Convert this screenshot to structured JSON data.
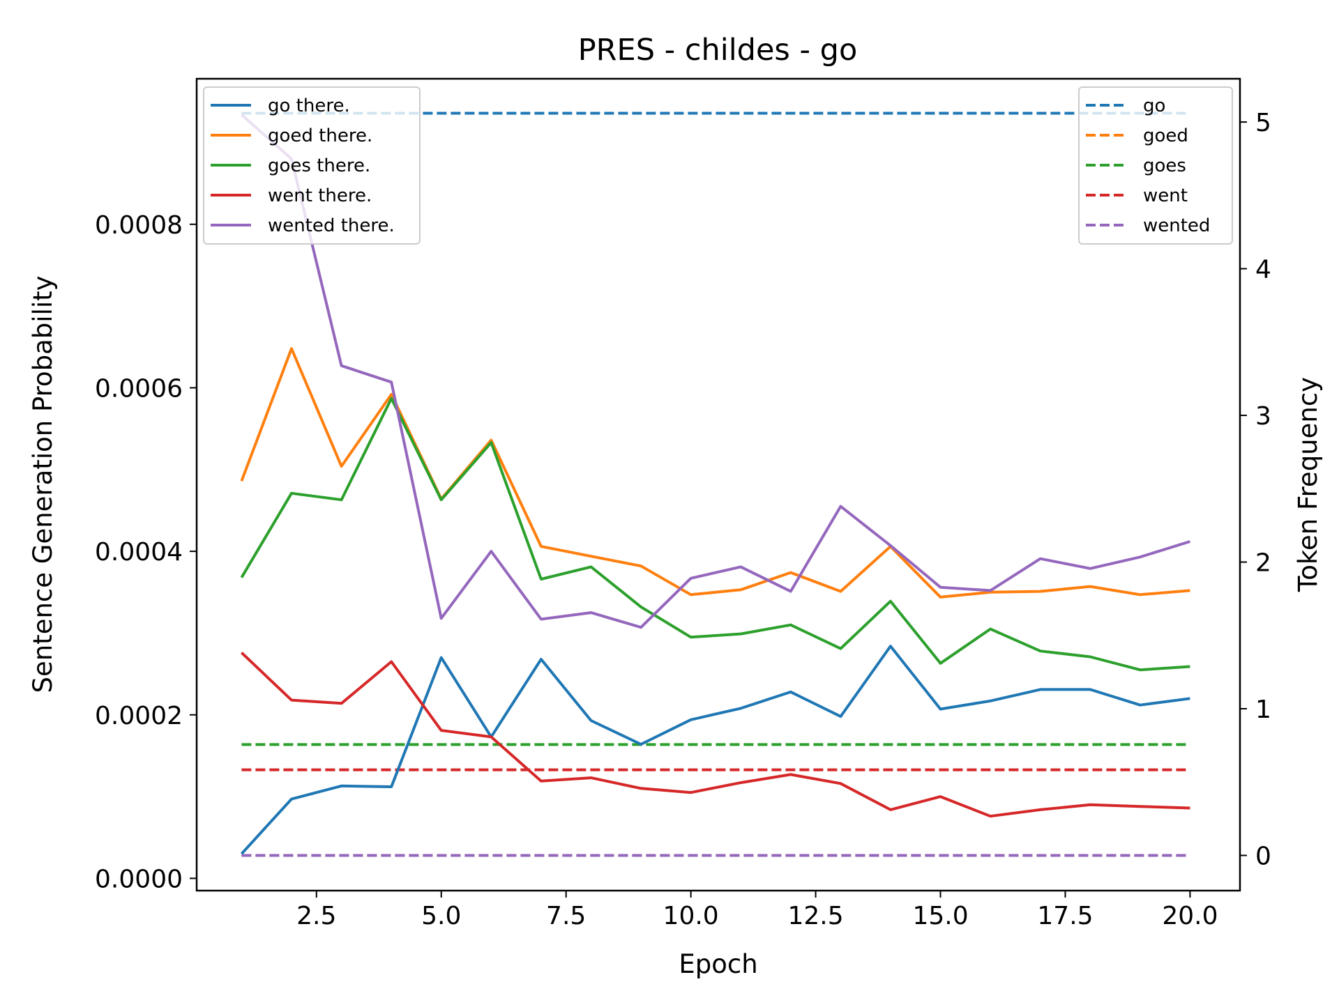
{
  "chart_data": {
    "type": "line",
    "title": "PRES - childes - go",
    "xlabel": "Epoch",
    "ylabel_left": "Sentence Generation Probability",
    "ylabel_right": "Token Frequency",
    "x": [
      1,
      2,
      3,
      4,
      5,
      6,
      7,
      8,
      9,
      10,
      11,
      12,
      13,
      14,
      15,
      16,
      17,
      18,
      19,
      20
    ],
    "xlim": [
      0.1,
      21.0
    ],
    "ylim_left": [
      -1.5e-05,
      0.000978
    ],
    "ylim_right": [
      -0.24,
      5.295
    ],
    "x_ticks": [
      2.5,
      5.0,
      7.5,
      10.0,
      12.5,
      15.0,
      17.5,
      20.0
    ],
    "x_tick_labels": [
      "2.5",
      "5.0",
      "7.5",
      "10.0",
      "12.5",
      "15.0",
      "17.5",
      "20.0"
    ],
    "y_left_ticks": [
      0.0,
      0.0002,
      0.0004,
      0.0006,
      0.0008
    ],
    "y_left_tick_labels": [
      "0.0000",
      "0.0002",
      "0.0004",
      "0.0006",
      "0.0008"
    ],
    "y_right_ticks": [
      0,
      1,
      2,
      3,
      4,
      5
    ],
    "y_right_tick_labels": [
      "0",
      "1",
      "2",
      "3",
      "4",
      "5"
    ],
    "grid": false,
    "series": [
      {
        "name": "go there.",
        "axis": "left",
        "color": "#1f77b4",
        "style": "solid",
        "values": [
          3e-05,
          9.7e-05,
          0.000113,
          0.000112,
          0.00027,
          0.000173,
          0.000268,
          0.000193,
          0.000164,
          0.000194,
          0.000208,
          0.000228,
          0.000198,
          0.000284,
          0.000207,
          0.000217,
          0.000231,
          0.000231,
          0.000212,
          0.00022
        ]
      },
      {
        "name": "goed there.",
        "axis": "left",
        "color": "#ff7f0e",
        "style": "solid",
        "values": [
          0.000486,
          0.000648,
          0.000504,
          0.000592,
          0.000464,
          0.000536,
          0.000406,
          0.000394,
          0.000382,
          0.000347,
          0.000353,
          0.000374,
          0.000351,
          0.000406,
          0.000344,
          0.00035,
          0.000351,
          0.000357,
          0.000347,
          0.000352
        ]
      },
      {
        "name": "goes there.",
        "axis": "left",
        "color": "#2ca02c",
        "style": "solid",
        "values": [
          0.000368,
          0.000471,
          0.000463,
          0.000587,
          0.000463,
          0.000533,
          0.000366,
          0.000381,
          0.000332,
          0.000295,
          0.000299,
          0.00031,
          0.000281,
          0.000339,
          0.000263,
          0.000305,
          0.000278,
          0.000271,
          0.000255,
          0.000259
        ]
      },
      {
        "name": "went there.",
        "axis": "left",
        "color": "#d62728",
        "style": "solid",
        "values": [
          0.000276,
          0.000218,
          0.000214,
          0.000265,
          0.000181,
          0.000173,
          0.000119,
          0.000123,
          0.00011,
          0.000105,
          0.000117,
          0.000127,
          0.000116,
          8.4e-05,
          0.0001,
          7.6e-05,
          8.4e-05,
          9e-05,
          8.8e-05,
          8.6e-05
        ]
      },
      {
        "name": "wented there.",
        "axis": "left",
        "color": "#9467bd",
        "style": "solid",
        "values": [
          0.000934,
          0.00088,
          0.000627,
          0.000607,
          0.000318,
          0.0004,
          0.000317,
          0.000325,
          0.000307,
          0.000367,
          0.000381,
          0.000351,
          0.000455,
          0.000407,
          0.000356,
          0.000352,
          0.000391,
          0.000379,
          0.000393,
          0.000412
        ]
      },
      {
        "name": "go",
        "axis": "right",
        "color": "#1f77b4",
        "style": "dashed",
        "values": [
          5.06,
          5.06,
          5.06,
          5.06,
          5.06,
          5.06,
          5.06,
          5.06,
          5.06,
          5.06,
          5.06,
          5.06,
          5.06,
          5.06,
          5.06,
          5.06,
          5.06,
          5.06,
          5.06,
          5.06
        ]
      },
      {
        "name": "goed",
        "axis": "right",
        "color": "#ff7f0e",
        "style": "dashed",
        "values": [
          0,
          0,
          0,
          0,
          0,
          0,
          0,
          0,
          0,
          0,
          0,
          0,
          0,
          0,
          0,
          0,
          0,
          0,
          0,
          0
        ]
      },
      {
        "name": "goes",
        "axis": "right",
        "color": "#2ca02c",
        "style": "dashed",
        "values": [
          0.756,
          0.756,
          0.756,
          0.756,
          0.756,
          0.756,
          0.756,
          0.756,
          0.756,
          0.756,
          0.756,
          0.756,
          0.756,
          0.756,
          0.756,
          0.756,
          0.756,
          0.756,
          0.756,
          0.756
        ]
      },
      {
        "name": "went",
        "axis": "right",
        "color": "#d62728",
        "style": "dashed",
        "values": [
          0.584,
          0.584,
          0.584,
          0.584,
          0.584,
          0.584,
          0.584,
          0.584,
          0.584,
          0.584,
          0.584,
          0.584,
          0.584,
          0.584,
          0.584,
          0.584,
          0.584,
          0.584,
          0.584,
          0.584
        ]
      },
      {
        "name": "wented",
        "axis": "right",
        "color": "#9467bd",
        "style": "dashed",
        "values": [
          0,
          0,
          0,
          0,
          0,
          0,
          0,
          0,
          0,
          0,
          0,
          0,
          0,
          0,
          0,
          0,
          0,
          0,
          0,
          0
        ]
      }
    ],
    "legend_left": {
      "placement": "upper-left",
      "entries": [
        "go there.",
        "goed there.",
        "goes there.",
        "went there.",
        "wented there."
      ]
    },
    "legend_right": {
      "placement": "upper-right",
      "entries": [
        "go",
        "goed",
        "goes",
        "went",
        "wented"
      ]
    }
  }
}
